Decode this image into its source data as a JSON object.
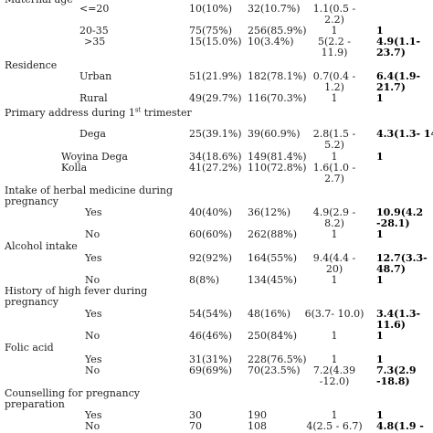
{
  "table": {
    "rows": [
      {
        "label": "Maternal age"
      },
      {
        "label": "<=20",
        "cases": "10(10%)",
        "controls": "32(10.7%)",
        "cor": [
          "1.1(0.5 -",
          "2.2)"
        ]
      },
      {
        "label": "20-35",
        "cases": "75(75%)",
        "controls": "256(85.9%)",
        "cor": "1",
        "aor": "1"
      },
      {
        "label": ">35",
        "cases": "15(15.0%)",
        "controls": "10(3.4%)",
        "cor": [
          "5(2.2 -",
          "11.9)"
        ],
        "aor": [
          "4.9(1.1-",
          "23.7)"
        ]
      },
      {
        "label": "Residence"
      },
      {
        "label": "Urban",
        "cases": "51(21.9%)",
        "controls": "182(78.1%)",
        "cor": [
          "0.7(0.4 -",
          "1.2)"
        ],
        "aor": [
          "6.4(1.9-",
          "21.7)"
        ]
      },
      {
        "label": "Rural",
        "cases": "49(29.7%)",
        "controls": "116(70.3%)",
        "cor": "1",
        "aor": "1"
      },
      {
        "label": "Primary address during 1",
        "label_sup": "st",
        "label_after": " trimester"
      },
      {
        "label": "Dega",
        "cases": "25(39.1%)",
        "controls": "39(60.9%)",
        "cor": [
          "2.8(1.5 -",
          "5.2)"
        ],
        "aor": "4.3(1.3- 14)"
      },
      {
        "label": "Woyina Dega",
        "cases": "34(18.6%)",
        "controls": "149(81.4%)",
        "cor": "1",
        "aor": "1"
      },
      {
        "label": "Kolla",
        "cases": "41(27.2%)",
        "controls": "110(72.8%)",
        "cor": [
          "1.6(1.0 -",
          "2.7)"
        ]
      },
      {
        "label": [
          "Intake of herbal medicine during",
          "pregnancy"
        ]
      },
      {
        "label": "Yes",
        "cases": "40(40%)",
        "controls": "36(12%)",
        "cor": [
          "4.9(2.9 -",
          "8.2)"
        ],
        "aor": [
          "10.9(4.2",
          "-28.1)"
        ]
      },
      {
        "label": "No",
        "cases": "60(60%)",
        "controls": "262(88%)",
        "cor": "1",
        "aor": "1"
      },
      {
        "label": "Alcohol intake"
      },
      {
        "label": "Yes",
        "cases": "92(92%)",
        "controls": "164(55%)",
        "cor": [
          "9.4(4.4 -",
          "20)"
        ],
        "aor": [
          "12.7(3.3-",
          "48.7)"
        ]
      },
      {
        "label": "No",
        "cases": "8(8%)",
        "controls": "134(45%)",
        "cor": "1",
        "aor": "1"
      },
      {
        "label": [
          "History of high fever during",
          "pregnancy"
        ]
      },
      {
        "label": "Yes",
        "cases": "54(54%)",
        "controls": "48(16%)",
        "cor": "6(3.7- 10.0)",
        "aor": [
          "3.4(1.3-",
          "11.6)"
        ]
      },
      {
        "label": "No",
        "cases": "46(46%)",
        "controls": "250(84%)",
        "cor": "1",
        "aor": "1"
      },
      {
        "label": "Folic acid"
      },
      {
        "label": "Yes",
        "cases": "31(31%)",
        "controls": "228(76.5%)",
        "cor": "1",
        "aor": "1"
      },
      {
        "label": "No",
        "cases": "69(69%)",
        "controls": "70(23.5%)",
        "cor": [
          "7.2(4.39",
          "-12.0)"
        ],
        "aor": [
          "7.3(2.9",
          "-18.8)"
        ]
      },
      {
        "label": [
          "Counselling for pregnancy",
          "preparation"
        ]
      },
      {
        "label": "Yes",
        "cases": "30",
        "controls": "190",
        "cor": "1",
        "aor": "1"
      },
      {
        "label": "No",
        "cases": "70",
        "controls": "108",
        "cor": "4(2.5 - 6.7)",
        "aor": "4.8(1.9 -"
      }
    ]
  }
}
